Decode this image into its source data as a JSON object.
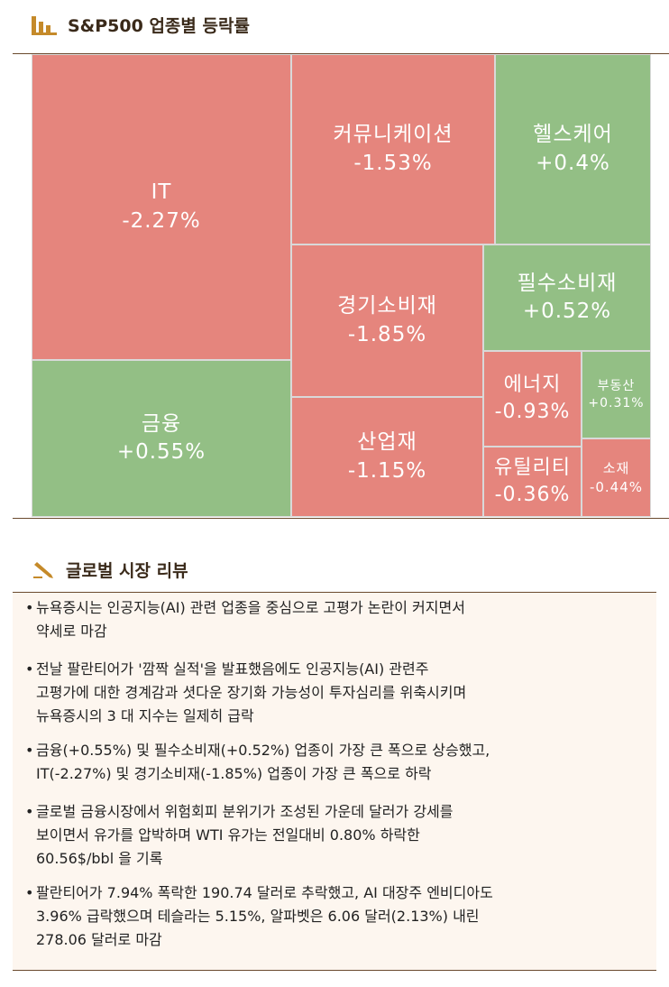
{
  "chart_data": {
    "type": "treemap",
    "title": "S&P500 업종별 등락률",
    "categories": [
      "IT",
      "금융",
      "커뮤니케이션",
      "헬스케어",
      "경기소비재",
      "산업재",
      "필수소비재",
      "에너지",
      "유틸리티",
      "부동산",
      "소재"
    ],
    "values": [
      -2.27,
      0.55,
      -1.53,
      0.4,
      -1.85,
      -1.15,
      0.52,
      -0.93,
      -0.36,
      0.31,
      -0.44
    ],
    "value_labels": [
      "-2.27%",
      "+0.55%",
      "-1.53%",
      "+0.4%",
      "-1.85%",
      "-1.15%",
      "+0.52%",
      "-0.93%",
      "-0.36%",
      "+0.31%",
      "-0.44%"
    ],
    "positive_color": "#93bf85",
    "negative_color": "#e5857d"
  },
  "review": {
    "title": "글로벌 시장 리뷰",
    "bullets": [
      [
        "뉴욕증시는 인공지능(AI) 관련 업종을 중심으로 고평가 논란이 커지면서",
        "약세로 마감"
      ],
      [
        "전날 팔란티어가 '깜짝 실적'을 발표했음에도 인공지능(AI) 관련주",
        "고평가에 대한 경계감과 셧다운 장기화 가능성이 투자심리를 위축시키며",
        "뉴욕증시의 3 대 지수는 일제히 급락"
      ],
      [
        "금융(+0.55%) 및 필수소비재(+0.52%) 업종이 가장 큰 폭으로 상승했고,",
        "IT(-2.27%) 및 경기소비재(-1.85%) 업종이 가장 큰 폭으로 하락"
      ],
      [
        "글로벌 금융시장에서 위험회피 분위기가 조성된 가운데 달러가 강세를",
        "보이면서 유가를 압박하며 WTI 유가는 전일대비 0.80% 하락한",
        "60.56$/bbl 을 기록"
      ],
      [
        "팔란티어가 7.94% 폭락한 190.74 달러로 추락했고, AI 대장주 엔비디아도",
        "3.96% 급락했으며 테슬라는 5.15%, 알파벳은 6.06 달러(2.13%) 내린",
        "278.06 달러로 마감"
      ]
    ]
  }
}
